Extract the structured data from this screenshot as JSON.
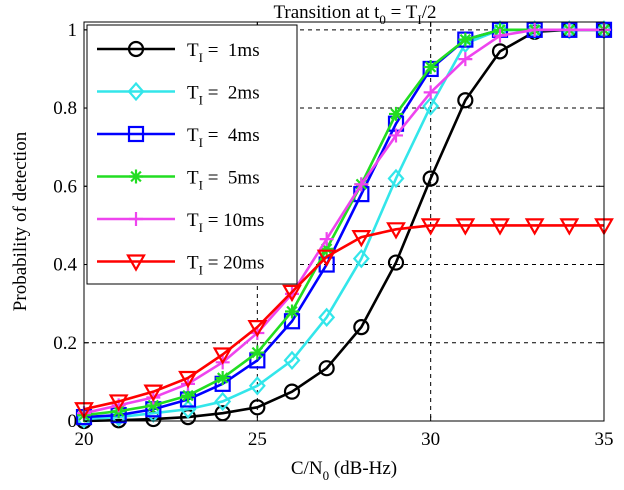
{
  "chart_data": {
    "type": "line",
    "title": {
      "text": "Transition at t",
      "sub1": "0",
      "mid": " = T",
      "sub2": "I",
      "tail": "/2"
    },
    "xlabel": {
      "pre": "C/N",
      "sub": "0",
      "post": " (dB-Hz)"
    },
    "ylabel": "Probability of detection",
    "xlim": [
      20,
      35
    ],
    "ylim": [
      0,
      1.02
    ],
    "xticks": [
      20,
      25,
      30,
      35
    ],
    "xtick_labels": [
      "20",
      "25",
      "30",
      "35"
    ],
    "yticks": [
      0,
      0.2,
      0.4,
      0.6,
      0.8,
      1
    ],
    "ytick_labels": [
      "0",
      "0.2",
      "0.4",
      "0.6",
      "0.8",
      "1"
    ],
    "grid": true,
    "legend_position": "top-left",
    "x": [
      20,
      21,
      22,
      23,
      24,
      25,
      26,
      27,
      28,
      29,
      30,
      31,
      32,
      33,
      34,
      35
    ],
    "series": [
      {
        "name": "T_I =  1ms",
        "label_pre": "T",
        "label_sub": "I",
        "label_post": " =  1ms",
        "color": "#000000",
        "marker": "circle",
        "values": [
          0.0,
          0.002,
          0.005,
          0.01,
          0.02,
          0.035,
          0.075,
          0.135,
          0.24,
          0.405,
          0.62,
          0.82,
          0.945,
          0.995,
          1.0,
          1.0
        ]
      },
      {
        "name": "T_I =  2ms",
        "label_pre": "T",
        "label_sub": "I",
        "label_post": " =  2ms",
        "color": "#33e6ea",
        "marker": "diamond",
        "values": [
          0.005,
          0.01,
          0.02,
          0.03,
          0.05,
          0.09,
          0.155,
          0.265,
          0.415,
          0.62,
          0.805,
          0.965,
          1.0,
          1.0,
          1.0,
          1.0
        ]
      },
      {
        "name": "T_I =  4ms",
        "label_pre": "T",
        "label_sub": "I",
        "label_post": " =  4ms",
        "color": "#0000ff",
        "marker": "square",
        "values": [
          0.01,
          0.015,
          0.03,
          0.055,
          0.095,
          0.155,
          0.255,
          0.4,
          0.58,
          0.76,
          0.9,
          0.975,
          1.0,
          1.0,
          1.0,
          1.0
        ]
      },
      {
        "name": "T_I =  5ms",
        "label_pre": "T",
        "label_sub": "I",
        "label_post": " =  5ms",
        "color": "#22dd22",
        "marker": "star",
        "values": [
          0.015,
          0.025,
          0.04,
          0.065,
          0.11,
          0.175,
          0.28,
          0.44,
          0.605,
          0.785,
          0.905,
          0.975,
          1.0,
          1.0,
          1.0,
          1.0
        ]
      },
      {
        "name": "T_I = 10ms",
        "label_pre": "T",
        "label_sub": "I",
        "label_post": " = 10ms",
        "color": "#ee44ee",
        "marker": "plus",
        "values": [
          0.02,
          0.04,
          0.06,
          0.095,
          0.15,
          0.225,
          0.325,
          0.465,
          0.605,
          0.73,
          0.84,
          0.925,
          0.985,
          1.0,
          1.0,
          1.0
        ]
      },
      {
        "name": "T_I = 20ms",
        "label_pre": "T",
        "label_sub": "I",
        "label_post": " = 20ms",
        "color": "#ff0000",
        "marker": "triangle-down",
        "values": [
          0.03,
          0.05,
          0.075,
          0.11,
          0.17,
          0.24,
          0.33,
          0.42,
          0.47,
          0.49,
          0.5,
          0.5,
          0.5,
          0.5,
          0.5,
          0.5
        ]
      }
    ]
  }
}
